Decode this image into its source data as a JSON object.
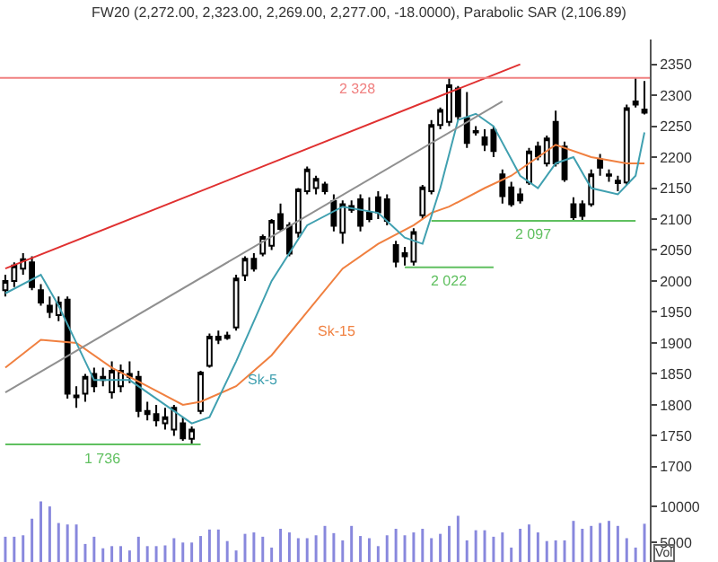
{
  "chart_data": [
    {
      "type": "candlestick",
      "title": "FW20 (2,272.00, 2,323.00, 2,269.00, 2,277.00, -18.0000), Parabolic SAR (2,106.89)",
      "categories": [
        null,
        null,
        null,
        null,
        null,
        null,
        null,
        null,
        null,
        null,
        null,
        null,
        null,
        null,
        null,
        null,
        null,
        null,
        null,
        null,
        null,
        null,
        null,
        null,
        null,
        null,
        null,
        null,
        null,
        null,
        null,
        null,
        null,
        null,
        null,
        null,
        null,
        null,
        null,
        null,
        null,
        null,
        null,
        null,
        null,
        null,
        null,
        null,
        null,
        null,
        null,
        null,
        null,
        null,
        null,
        null,
        null,
        null,
        null,
        null,
        null,
        null,
        null,
        null,
        null,
        null,
        null,
        null,
        null,
        null,
        null,
        null,
        null
      ],
      "ohlc": [
        [
          1985,
          2010,
          1975,
          2000
        ],
        [
          2000,
          2030,
          1990,
          2025
        ],
        [
          2020,
          2045,
          2010,
          2035
        ],
        [
          2030,
          2040,
          1985,
          1990
        ],
        [
          1985,
          1995,
          1960,
          1965
        ],
        [
          1960,
          1975,
          1940,
          1950
        ],
        [
          1945,
          1975,
          1935,
          1965
        ],
        [
          1970,
          1975,
          1810,
          1818
        ],
        [
          1815,
          1830,
          1795,
          1812
        ],
        [
          1818,
          1850,
          1805,
          1845
        ],
        [
          1850,
          1860,
          1820,
          1830
        ],
        [
          1840,
          1860,
          1830,
          1845
        ],
        [
          1820,
          1870,
          1810,
          1855
        ],
        [
          1830,
          1865,
          1820,
          1855
        ],
        [
          1850,
          1870,
          1835,
          1845
        ],
        [
          1845,
          1855,
          1780,
          1790
        ],
        [
          1790,
          1805,
          1775,
          1785
        ],
        [
          1785,
          1800,
          1765,
          1775
        ],
        [
          1770,
          1795,
          1760,
          1780
        ],
        [
          1760,
          1800,
          1750,
          1795
        ],
        [
          1770,
          1780,
          1742,
          1746
        ],
        [
          1745,
          1765,
          1736,
          1760
        ],
        [
          1790,
          1855,
          1785,
          1852
        ],
        [
          1863,
          1915,
          1860,
          1910
        ],
        [
          1905,
          1920,
          1898,
          1910
        ],
        [
          1912,
          1918,
          1905,
          1908
        ],
        [
          1925,
          2010,
          1920,
          2004
        ],
        [
          2009,
          2040,
          2000,
          2036
        ],
        [
          2036,
          2045,
          2015,
          2020
        ],
        [
          2044,
          2075,
          2040,
          2071
        ],
        [
          2057,
          2100,
          2050,
          2097
        ],
        [
          2108,
          2125,
          2080,
          2084
        ],
        [
          2090,
          2095,
          2040,
          2044
        ],
        [
          2078,
          2150,
          2070,
          2148
        ],
        [
          2145,
          2185,
          2140,
          2180
        ],
        [
          2150,
          2170,
          2140,
          2165
        ],
        [
          2156,
          2160,
          2140,
          2145
        ],
        [
          2129,
          2140,
          2080,
          2089
        ],
        [
          2078,
          2130,
          2060,
          2124
        ],
        [
          2121,
          2130,
          2110,
          2115
        ],
        [
          2132,
          2140,
          2080,
          2089
        ],
        [
          2110,
          2135,
          2095,
          2100
        ],
        [
          2135,
          2145,
          2100,
          2111
        ],
        [
          2132,
          2140,
          2090,
          2097
        ],
        [
          2058,
          2065,
          2022,
          2031
        ],
        [
          2040,
          2055,
          2025,
          2045
        ],
        [
          2031,
          2085,
          2025,
          2079
        ],
        [
          2106,
          2155,
          2100,
          2151
        ],
        [
          2145,
          2260,
          2140,
          2252
        ],
        [
          2252,
          2280,
          2245,
          2276
        ],
        [
          2257,
          2328,
          2250,
          2316
        ],
        [
          2311,
          2315,
          2260,
          2266
        ],
        [
          2263,
          2305,
          2215,
          2223
        ],
        [
          2240,
          2250,
          2235,
          2242
        ],
        [
          2232,
          2245,
          2210,
          2220
        ],
        [
          2244,
          2250,
          2200,
          2210
        ],
        [
          2172,
          2180,
          2125,
          2137
        ],
        [
          2151,
          2160,
          2120,
          2124
        ],
        [
          2140,
          2150,
          2125,
          2130
        ],
        [
          2159,
          2215,
          2155,
          2209
        ],
        [
          2217,
          2225,
          2195,
          2201
        ],
        [
          2190,
          2235,
          2185,
          2230
        ],
        [
          2257,
          2275,
          2185,
          2190
        ],
        [
          2217,
          2225,
          2160,
          2164
        ],
        [
          2124,
          2135,
          2097,
          2103
        ],
        [
          2124,
          2130,
          2097,
          2105
        ],
        [
          2124,
          2180,
          2120,
          2172
        ],
        [
          2196,
          2205,
          2170,
          2183
        ],
        [
          2172,
          2180,
          2160,
          2170
        ],
        [
          2162,
          2170,
          2145,
          2158
        ],
        [
          2159,
          2285,
          2155,
          2279
        ],
        [
          2285,
          2328,
          2280,
          2290
        ],
        [
          2272,
          2323,
          2269,
          2277
        ]
      ],
      "series": [
        {
          "type": "line",
          "name": "Sk-15",
          "color": "#f08040",
          "values": [
            1860,
            null,
            null,
            null,
            1905,
            null,
            null,
            null,
            1900,
            null,
            null,
            null,
            1860,
            null,
            null,
            null,
            1830,
            null,
            null,
            null,
            1800,
            null,
            1805,
            null,
            null,
            null,
            1830,
            null,
            null,
            null,
            1880,
            null,
            null,
            null,
            1950,
            null,
            null,
            null,
            2020,
            null,
            null,
            null,
            2060,
            null,
            null,
            null,
            2090,
            null,
            2110,
            null,
            2120,
            null,
            null,
            null,
            2150,
            null,
            null,
            2170,
            null,
            null,
            null,
            null,
            2220,
            null,
            null,
            null,
            2200,
            null,
            null,
            null,
            2190,
            null,
            2190
          ]
        },
        {
          "type": "line",
          "name": "Sk-5",
          "color": "#40a0b0",
          "values": [
            1980,
            null,
            null,
            null,
            2010,
            null,
            1960,
            null,
            1900,
            null,
            1840,
            null,
            null,
            null,
            1840,
            null,
            null,
            null,
            1800,
            null,
            null,
            1770,
            null,
            1780,
            null,
            null,
            1870,
            null,
            null,
            null,
            2000,
            null,
            null,
            null,
            2090,
            null,
            null,
            null,
            2120,
            null,
            null,
            null,
            2110,
            null,
            null,
            2070,
            null,
            2060,
            null,
            2150,
            null,
            2260,
            null,
            2270,
            null,
            2250,
            null,
            null,
            2170,
            null,
            2150,
            null,
            2190,
            null,
            2200,
            null,
            2150,
            null,
            null,
            2140,
            null,
            2170,
            2240
          ]
        },
        {
          "type": "line",
          "color": "#e03030",
          "values": [
            2020,
            null,
            null,
            null,
            null,
            null,
            null,
            null,
            null,
            null,
            null,
            null,
            null,
            null,
            null,
            null,
            null,
            null,
            null,
            null,
            null,
            null,
            null,
            null,
            null,
            null,
            null,
            null,
            null,
            null,
            null,
            null,
            null,
            null,
            null,
            null,
            null,
            null,
            null,
            null,
            null,
            null,
            null,
            null,
            null,
            null,
            null,
            null,
            null,
            null,
            null,
            null,
            null,
            null,
            null,
            null,
            null,
            null,
            2350,
            null,
            null,
            null,
            null,
            null,
            null,
            null,
            null,
            null,
            null,
            null,
            null,
            null,
            null
          ]
        },
        {
          "type": "line",
          "color": "#909090",
          "values": [
            1820,
            null,
            null,
            null,
            null,
            null,
            null,
            null,
            null,
            null,
            null,
            null,
            null,
            null,
            null,
            null,
            null,
            null,
            null,
            null,
            null,
            null,
            null,
            null,
            null,
            null,
            null,
            null,
            null,
            null,
            null,
            null,
            null,
            null,
            null,
            null,
            null,
            null,
            null,
            null,
            null,
            null,
            null,
            null,
            null,
            null,
            null,
            null,
            null,
            null,
            null,
            null,
            null,
            null,
            null,
            null,
            2290,
            null,
            null,
            null,
            null,
            null,
            null,
            null,
            null,
            null,
            null,
            null,
            null,
            null,
            null,
            null,
            null
          ]
        },
        {
          "type": "line",
          "name": "1 736",
          "color": "#60c060",
          "values": [
            1736,
            null,
            null,
            null,
            null,
            null,
            null,
            null,
            null,
            null,
            null,
            null,
            null,
            null,
            null,
            null,
            null,
            null,
            null,
            null,
            null,
            null,
            1736,
            null,
            null,
            null,
            null,
            null,
            null,
            null,
            null,
            null,
            null,
            null,
            null,
            null,
            null,
            null,
            null,
            null,
            null,
            null,
            null,
            null,
            null,
            null,
            null,
            null,
            null,
            null,
            null,
            null,
            null,
            null,
            null,
            null,
            null,
            null,
            null,
            null,
            null,
            null,
            null,
            null,
            null,
            null,
            null,
            null,
            null,
            null,
            null,
            null,
            null
          ]
        },
        {
          "type": "line",
          "name": "2 022",
          "color": "#60c060",
          "values": [
            null,
            null,
            null,
            null,
            null,
            null,
            null,
            null,
            null,
            null,
            null,
            null,
            null,
            null,
            null,
            null,
            null,
            null,
            null,
            null,
            null,
            null,
            null,
            null,
            null,
            null,
            null,
            null,
            null,
            null,
            null,
            null,
            null,
            null,
            null,
            null,
            null,
            null,
            null,
            null,
            null,
            null,
            null,
            null,
            null,
            2022,
            null,
            null,
            null,
            null,
            null,
            null,
            null,
            null,
            null,
            2022,
            null,
            null,
            null,
            null,
            null,
            null,
            null,
            null,
            null,
            null,
            null,
            null,
            null,
            null,
            null,
            null,
            null
          ]
        },
        {
          "type": "line",
          "name": "2 097",
          "color": "#60c060",
          "values": [
            null,
            null,
            null,
            null,
            null,
            null,
            null,
            null,
            null,
            null,
            null,
            null,
            null,
            null,
            null,
            null,
            null,
            null,
            null,
            null,
            null,
            null,
            null,
            null,
            null,
            null,
            null,
            null,
            null,
            null,
            null,
            null,
            null,
            null,
            null,
            null,
            null,
            null,
            null,
            null,
            null,
            null,
            null,
            null,
            null,
            null,
            null,
            null,
            2097,
            null,
            null,
            null,
            null,
            null,
            null,
            null,
            null,
            null,
            null,
            null,
            null,
            null,
            null,
            null,
            null,
            null,
            null,
            null,
            null,
            null,
            null,
            2097,
            null
          ]
        }
      ],
      "ref_lines": [
        {
          "axis": "y",
          "value": 2328,
          "label": "2 328",
          "color": "#f08080"
        }
      ],
      "ylim": [
        1665,
        2390
      ],
      "yticks": [
        1700,
        1750,
        1800,
        1850,
        1900,
        1950,
        2000,
        2050,
        2100,
        2150,
        2200,
        2250,
        2300,
        2350
      ],
      "tick_labels": "y",
      "grid": false
    },
    {
      "type": "bar",
      "categories": [
        null,
        null,
        null,
        null,
        null,
        null,
        null,
        null,
        null,
        null,
        null,
        null,
        null,
        null,
        null,
        null,
        null,
        null,
        null,
        null,
        null,
        null,
        null,
        null,
        null,
        null,
        null,
        null,
        null,
        null,
        null,
        null,
        null,
        null,
        null,
        null,
        null,
        null,
        null,
        null,
        null,
        null,
        null,
        null,
        null,
        null,
        null,
        null,
        null,
        null,
        null,
        null,
        null,
        null,
        null,
        null,
        null,
        null,
        null,
        null,
        null,
        null,
        null,
        null,
        null,
        null,
        null,
        null,
        null,
        null,
        null,
        null,
        null
      ],
      "values": [
        5800,
        5800,
        6000,
        8300,
        10700,
        10000,
        7700,
        7500,
        7500,
        4800,
        5800,
        4200,
        4500,
        4500,
        3900,
        5800,
        4500,
        4500,
        4600,
        5600,
        5000,
        5000,
        5900,
        6800,
        6800,
        5200,
        3900,
        6200,
        6400,
        5800,
        4300,
        6900,
        6400,
        5600,
        5600,
        6000,
        7300,
        6300,
        5300,
        7300,
        5900,
        5600,
        4500,
        6000,
        6900,
        6000,
        6400,
        6900,
        5600,
        6200,
        7300,
        8700,
        5300,
        6700,
        6700,
        5800,
        6400,
        4300,
        6900,
        7500,
        6400,
        5200,
        5300,
        5300,
        8000,
        6900,
        7300,
        7700,
        8000,
        7300,
        5600,
        4300,
        7600
      ],
      "color": "#8888dd",
      "ylim": [
        2300,
        12500
      ],
      "yticks": [
        5000,
        10000
      ],
      "annotations": [
        "Vol"
      ],
      "tick_labels": "y",
      "grid": false
    }
  ]
}
